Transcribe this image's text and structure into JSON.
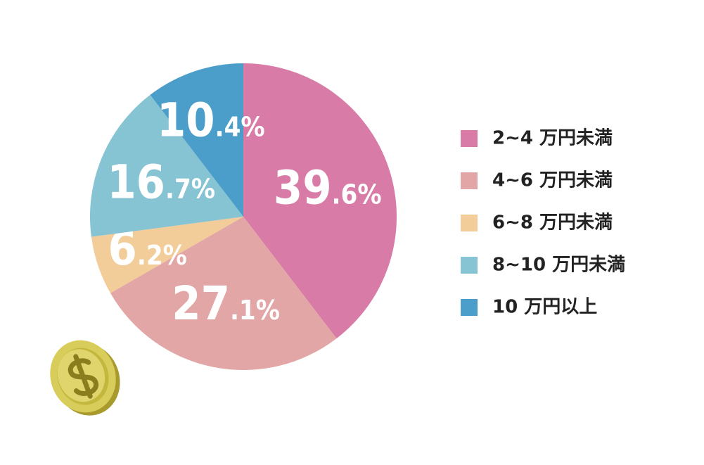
{
  "chart_data": {
    "type": "pie",
    "categories": [
      "2~4 万円未満",
      "4~6 万円未満",
      "6~8 万円未満",
      "8~10 万円未満",
      "10 万円以上"
    ],
    "values": [
      39.6,
      27.1,
      6.2,
      16.7,
      10.4
    ],
    "value_labels": [
      "39.6%",
      "27.1%",
      "6.2%",
      "16.7%",
      "10.4%"
    ],
    "colors": [
      "#d97ba7",
      "#e3a6a6",
      "#f2cc99",
      "#86c3d3",
      "#4b9ec9"
    ]
  }
}
